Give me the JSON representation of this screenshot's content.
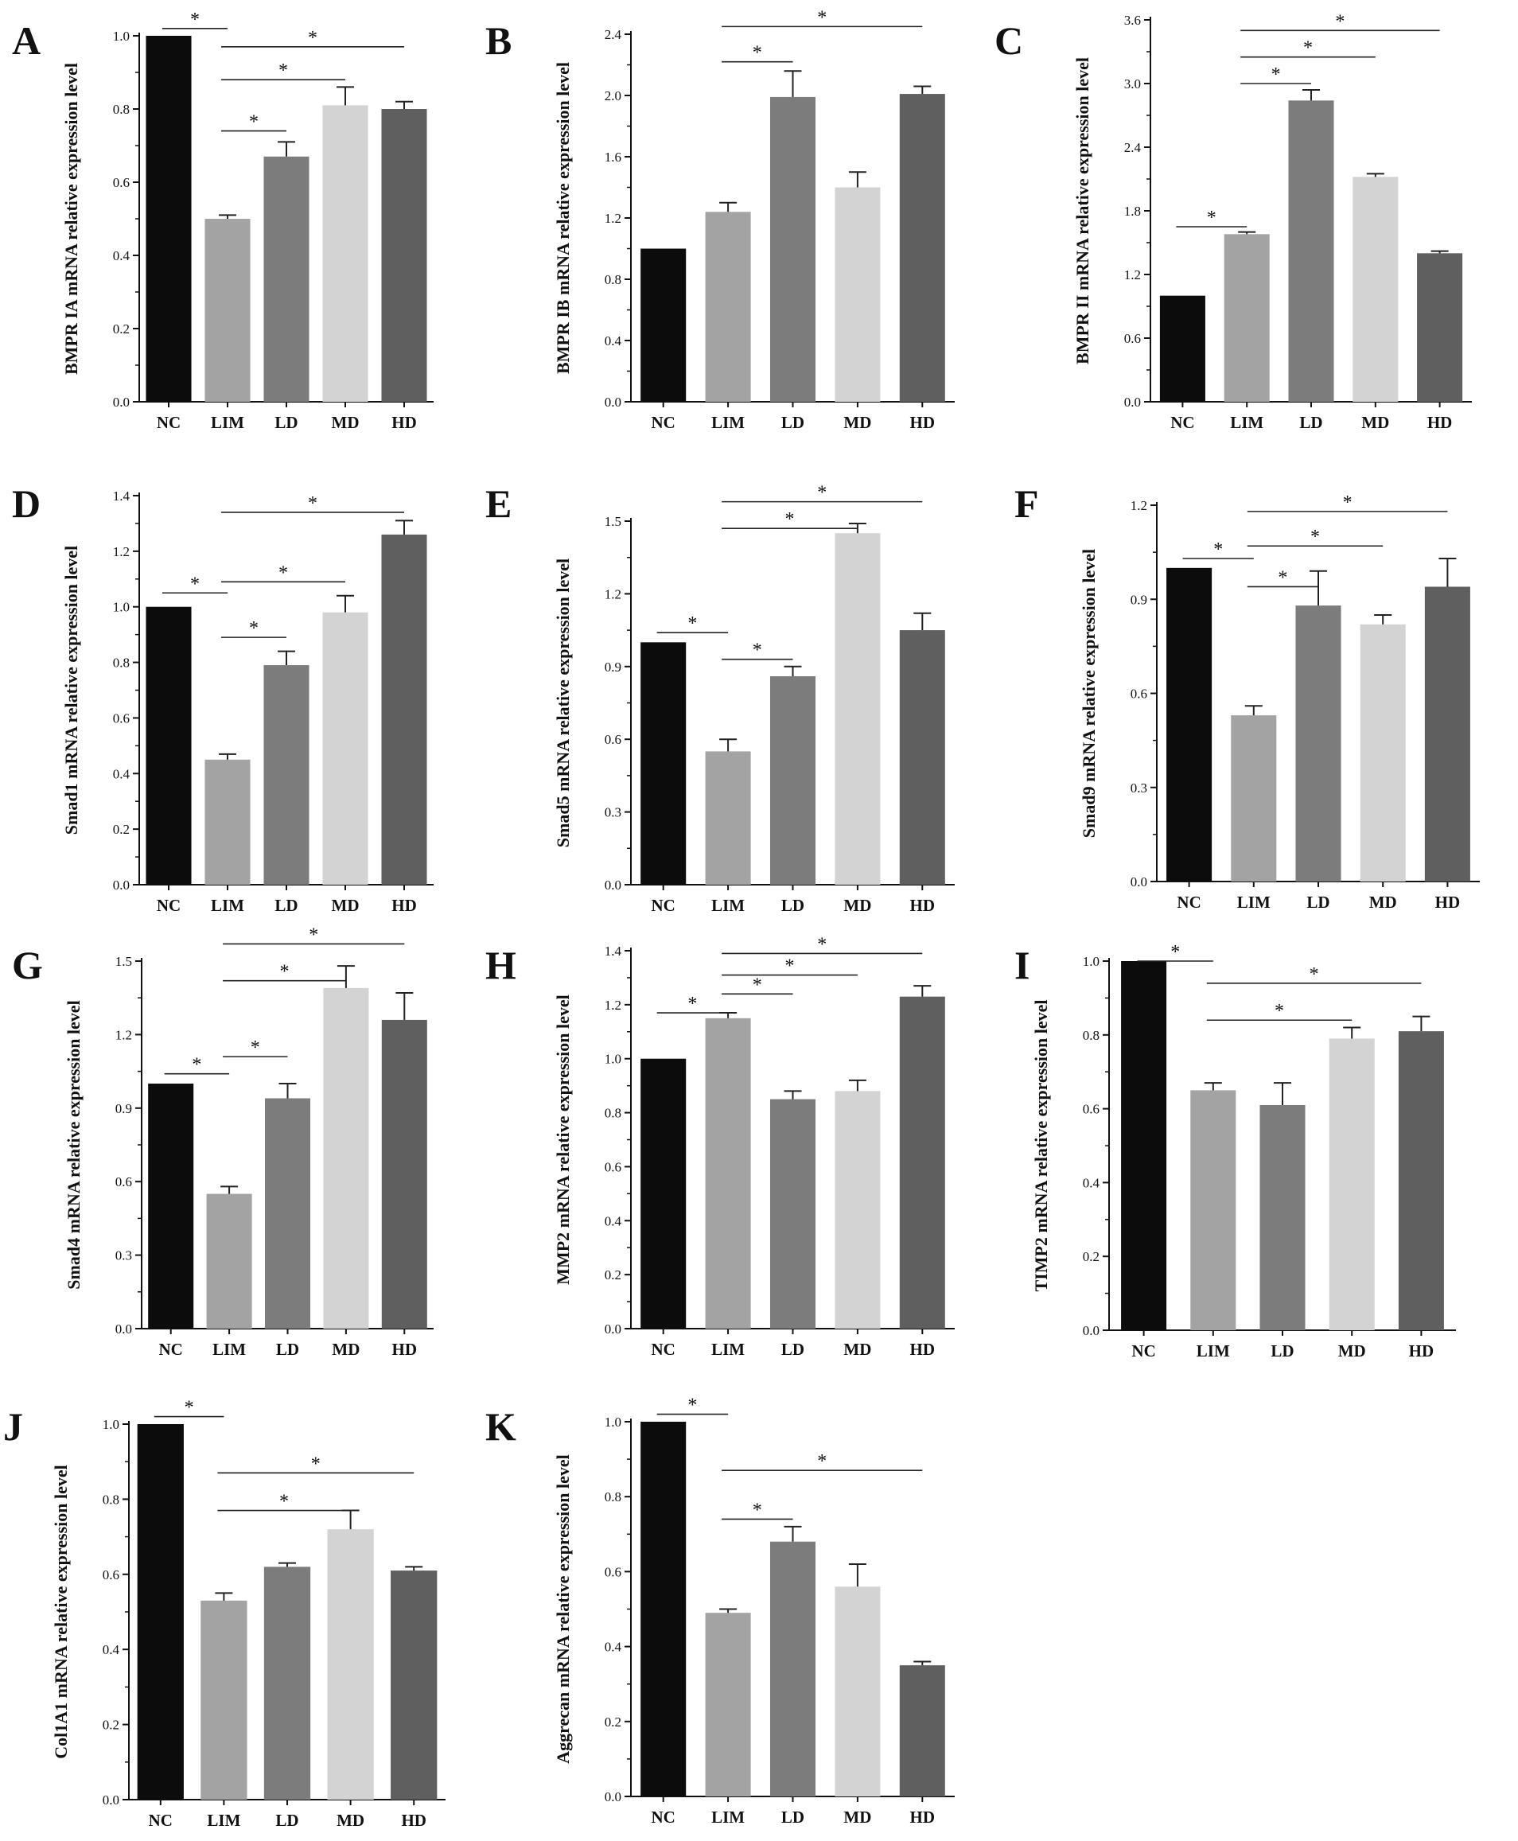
{
  "colors": {
    "NC": "#0c0c0c",
    "LIM": "#a3a3a3",
    "LD": "#7c7c7c",
    "MD": "#d3d3d3",
    "HD": "#5f5f5f",
    "axis": "#111111"
  },
  "chart_data": [
    {
      "letter": "A",
      "type": "bar",
      "ylabel": "BMPR IA mRNA relative expression level",
      "categories": [
        "NC",
        "LIM",
        "LD",
        "MD",
        "HD"
      ],
      "values": [
        1.0,
        0.5,
        0.67,
        0.81,
        0.8
      ],
      "errors": [
        0,
        0.01,
        0.04,
        0.05,
        0.02
      ],
      "ylim": [
        0,
        1.0
      ],
      "yticks": [
        "0.0",
        "0.2",
        "0.4",
        "0.6",
        "0.8",
        "1.0"
      ],
      "significance": [
        {
          "from": 0,
          "to": 1,
          "y": 1.02
        },
        {
          "from": 1,
          "to": 2,
          "y": 0.74
        },
        {
          "from": 1,
          "to": 3,
          "y": 0.88
        },
        {
          "from": 1,
          "to": 4,
          "y": 0.97
        }
      ]
    },
    {
      "letter": "B",
      "type": "bar",
      "ylabel": "BMPR IB mRNA relative expression level",
      "categories": [
        "NC",
        "LIM",
        "LD",
        "MD",
        "HD"
      ],
      "values": [
        1.0,
        1.24,
        1.99,
        1.4,
        2.01
      ],
      "errors": [
        0,
        0.06,
        0.17,
        0.1,
        0.05
      ],
      "ylim": [
        0,
        2.4
      ],
      "yticks": [
        "0.0",
        "0.4",
        "0.8",
        "1.2",
        "1.6",
        "2.0",
        "2.4"
      ],
      "significance": [
        {
          "from": 1,
          "to": 2,
          "y": 2.22
        },
        {
          "from": 1,
          "to": 4,
          "y": 2.45
        }
      ]
    },
    {
      "letter": "C",
      "type": "bar",
      "ylabel": "BMPR II mRNA relative expression level",
      "categories": [
        "NC",
        "LIM",
        "LD",
        "MD",
        "HD"
      ],
      "values": [
        1.0,
        1.58,
        2.84,
        2.12,
        1.4
      ],
      "errors": [
        0,
        0.02,
        0.1,
        0.03,
        0.02
      ],
      "ylim": [
        0,
        3.6
      ],
      "yticks": [
        "0.0",
        "0.6",
        "1.2",
        "1.8",
        "2.4",
        "3.0",
        "3.6"
      ],
      "significance": [
        {
          "from": 0,
          "to": 1,
          "y": 1.65
        },
        {
          "from": 1,
          "to": 2,
          "y": 3.0
        },
        {
          "from": 1,
          "to": 3,
          "y": 3.25
        },
        {
          "from": 1,
          "to": 4,
          "y": 3.5
        }
      ]
    },
    {
      "letter": "D",
      "type": "bar",
      "ylabel": "Smad1 mRNA relative expression level",
      "categories": [
        "NC",
        "LIM",
        "LD",
        "MD",
        "HD"
      ],
      "values": [
        1.0,
        0.45,
        0.79,
        0.98,
        1.26
      ],
      "errors": [
        0,
        0.02,
        0.05,
        0.06,
        0.05
      ],
      "ylim": [
        0,
        1.4
      ],
      "yticks": [
        "0.0",
        "0.2",
        "0.4",
        "0.6",
        "0.8",
        "1.0",
        "1.2",
        "1.4"
      ],
      "significance": [
        {
          "from": 0,
          "to": 1,
          "y": 1.05
        },
        {
          "from": 1,
          "to": 2,
          "y": 0.89
        },
        {
          "from": 1,
          "to": 3,
          "y": 1.09
        },
        {
          "from": 1,
          "to": 4,
          "y": 1.34
        }
      ]
    },
    {
      "letter": "E",
      "type": "bar",
      "ylabel": "Smad5 mRNA relative expression level",
      "categories": [
        "NC",
        "LIM",
        "LD",
        "MD",
        "HD"
      ],
      "values": [
        1.0,
        0.55,
        0.86,
        1.45,
        1.05
      ],
      "errors": [
        0,
        0.05,
        0.04,
        0.04,
        0.07
      ],
      "ylim": [
        0,
        1.5
      ],
      "yticks": [
        "0.0",
        "0.3",
        "0.6",
        "0.9",
        "1.2",
        "1.5"
      ],
      "significance": [
        {
          "from": 0,
          "to": 1,
          "y": 1.04
        },
        {
          "from": 1,
          "to": 2,
          "y": 0.93
        },
        {
          "from": 1,
          "to": 3,
          "y": 1.47
        },
        {
          "from": 1,
          "to": 4,
          "y": 1.58
        }
      ]
    },
    {
      "letter": "F",
      "type": "bar",
      "ylabel": "Smad9 mRNA relative expression level",
      "categories": [
        "NC",
        "LIM",
        "LD",
        "MD",
        "HD"
      ],
      "values": [
        1.0,
        0.53,
        0.88,
        0.82,
        0.94
      ],
      "errors": [
        0,
        0.03,
        0.11,
        0.03,
        0.09
      ],
      "ylim": [
        0,
        1.2
      ],
      "yticks": [
        "0.0",
        "0.3",
        "0.6",
        "0.9",
        "1.2"
      ],
      "significance": [
        {
          "from": 0,
          "to": 1,
          "y": 1.03
        },
        {
          "from": 1,
          "to": 2,
          "y": 0.94
        },
        {
          "from": 1,
          "to": 3,
          "y": 1.07
        },
        {
          "from": 1,
          "to": 4,
          "y": 1.18
        }
      ]
    },
    {
      "letter": "G",
      "type": "bar",
      "ylabel": "Smad4 mRNA relative expression level",
      "categories": [
        "NC",
        "LIM",
        "LD",
        "MD",
        "HD"
      ],
      "values": [
        1.0,
        0.55,
        0.94,
        1.39,
        1.26
      ],
      "errors": [
        0,
        0.03,
        0.06,
        0.09,
        0.11
      ],
      "ylim": [
        0,
        1.5
      ],
      "yticks": [
        "0.0",
        "0.3",
        "0.6",
        "0.9",
        "1.2",
        "1.5"
      ],
      "significance": [
        {
          "from": 0,
          "to": 1,
          "y": 1.04
        },
        {
          "from": 1,
          "to": 2,
          "y": 1.11
        },
        {
          "from": 1,
          "to": 3,
          "y": 1.42
        },
        {
          "from": 1,
          "to": 4,
          "y": 1.57
        }
      ]
    },
    {
      "letter": "H",
      "type": "bar",
      "ylabel": "MMP2 mRNA relative expression level",
      "categories": [
        "NC",
        "LIM",
        "LD",
        "MD",
        "HD"
      ],
      "values": [
        1.0,
        1.15,
        0.85,
        0.88,
        1.23
      ],
      "errors": [
        0,
        0.02,
        0.03,
        0.04,
        0.04
      ],
      "ylim": [
        0,
        1.4
      ],
      "yticks": [
        "0.0",
        "0.2",
        "0.4",
        "0.6",
        "0.8",
        "1.0",
        "1.2",
        "1.4"
      ],
      "significance": [
        {
          "from": 0,
          "to": 1,
          "y": 1.17
        },
        {
          "from": 1,
          "to": 2,
          "y": 1.24
        },
        {
          "from": 1,
          "to": 3,
          "y": 1.31
        },
        {
          "from": 1,
          "to": 4,
          "y": 1.39
        }
      ]
    },
    {
      "letter": "I",
      "type": "bar",
      "ylabel": "TIMP2 mRNA relative expression level",
      "categories": [
        "NC",
        "LIM",
        "LD",
        "MD",
        "HD"
      ],
      "values": [
        1.0,
        0.65,
        0.61,
        0.79,
        0.81
      ],
      "errors": [
        0,
        0.02,
        0.06,
        0.03,
        0.04
      ],
      "ylim": [
        0,
        1.0
      ],
      "yticks": [
        "0.0",
        "0.2",
        "0.4",
        "0.6",
        "0.8",
        "1.0"
      ],
      "significance": [
        {
          "from": 0,
          "to": 1,
          "y": 1.0
        },
        {
          "from": 1,
          "to": 3,
          "y": 0.84
        },
        {
          "from": 1,
          "to": 4,
          "y": 0.94
        }
      ]
    },
    {
      "letter": "J",
      "type": "bar",
      "ylabel": "Col1A1 mRNA relative expression level",
      "categories": [
        "NC",
        "LIM",
        "LD",
        "MD",
        "HD"
      ],
      "values": [
        1.0,
        0.53,
        0.62,
        0.72,
        0.61
      ],
      "errors": [
        0,
        0.02,
        0.01,
        0.05,
        0.01
      ],
      "ylim": [
        0,
        1.0
      ],
      "yticks": [
        "0.0",
        "0.2",
        "0.4",
        "0.6",
        "0.8",
        "1.0"
      ],
      "significance": [
        {
          "from": 0,
          "to": 1,
          "y": 1.02
        },
        {
          "from": 1,
          "to": 3,
          "y": 0.77
        },
        {
          "from": 1,
          "to": 4,
          "y": 0.87
        }
      ]
    },
    {
      "letter": "K",
      "type": "bar",
      "ylabel": "Aggrecan mRNA relative expression level",
      "categories": [
        "NC",
        "LIM",
        "LD",
        "MD",
        "HD"
      ],
      "values": [
        1.0,
        0.49,
        0.68,
        0.56,
        0.35
      ],
      "errors": [
        0,
        0.01,
        0.04,
        0.06,
        0.01
      ],
      "ylim": [
        0,
        1.0
      ],
      "yticks": [
        "0.0",
        "0.2",
        "0.4",
        "0.6",
        "0.8",
        "1.0"
      ],
      "significance": [
        {
          "from": 0,
          "to": 1,
          "y": 1.02
        },
        {
          "from": 1,
          "to": 2,
          "y": 0.74
        },
        {
          "from": 1,
          "to": 4,
          "y": 0.87
        }
      ]
    }
  ]
}
